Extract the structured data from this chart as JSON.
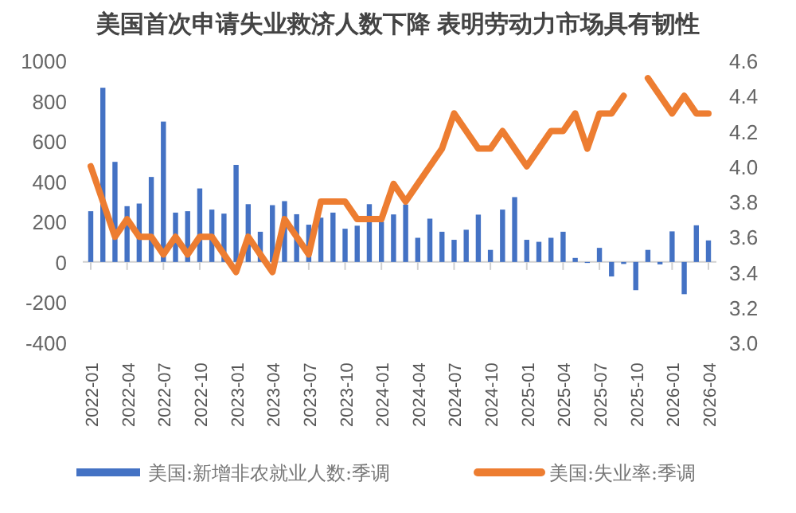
{
  "chart_data": {
    "type": "bar",
    "title": "美国首次申请失业救济人数下降 表明劳动力市场具有韧性",
    "categories": [
      "2022-01",
      null,
      null,
      "2022-04",
      null,
      null,
      "2022-07",
      null,
      null,
      "2022-10",
      null,
      null,
      "2023-01",
      null,
      null,
      "2023-04",
      null,
      null,
      "2023-07",
      null,
      null,
      "2023-10",
      null,
      null,
      "2024-01",
      null,
      null,
      "2024-04",
      null,
      null,
      "2024-07",
      null,
      null,
      "2024-10",
      null,
      null,
      "2025-01",
      null,
      null,
      "2025-04",
      null,
      null,
      "2025-07",
      null,
      null,
      "2025-10",
      null,
      null,
      "2026-01",
      null,
      null,
      "2026-04"
    ],
    "series": [
      {
        "name": "美国:新增非农就业人数:季调",
        "color": "#4472c4",
        "values": [
          252,
          865,
          497,
          277,
          290,
          422,
          697,
          245,
          252,
          365,
          260,
          240,
          482,
          287,
          150,
          282,
          302,
          237,
          185,
          220,
          245,
          165,
          180,
          287,
          200,
          236,
          285,
          120,
          215,
          150,
          110,
          160,
          235,
          60,
          260,
          322,
          110,
          100,
          120,
          150,
          20,
          -5,
          70,
          -72,
          -10,
          -140,
          60,
          -12,
          152,
          -160,
          182,
          107
        ]
      },
      {
        "name": "美国:失业率:季调",
        "type": "line",
        "axis": "y2",
        "color": "#ed7d31",
        "values": [
          4.0,
          3.8,
          3.6,
          3.7,
          3.6,
          3.6,
          3.5,
          3.6,
          3.5,
          3.6,
          3.6,
          3.5,
          3.4,
          3.6,
          3.5,
          3.4,
          3.7,
          3.6,
          3.5,
          3.8,
          3.8,
          3.8,
          3.7,
          3.7,
          3.7,
          3.9,
          3.8,
          3.9,
          4.0,
          4.1,
          4.3,
          4.2,
          4.1,
          4.1,
          4.2,
          4.1,
          4.0,
          4.1,
          4.2,
          4.2,
          4.3,
          4.1,
          4.3,
          4.3,
          4.4,
          null,
          4.5,
          4.4,
          4.3,
          4.4,
          4.3,
          4.3
        ]
      }
    ],
    "ylim": [
      -400,
      1000
    ],
    "yticks": [
      -400,
      -200,
      0,
      200,
      400,
      600,
      800,
      1000
    ],
    "y2lim": [
      3.0,
      4.6
    ],
    "y2ticks": [
      {
        "value": 3.0,
        "label": "3.0"
      },
      3.2,
      3.4,
      3.6,
      3.8,
      {
        "value": 4.0,
        "label": "4.0"
      },
      4.2,
      4.4,
      4.6
    ],
    "legend": "bottom"
  }
}
